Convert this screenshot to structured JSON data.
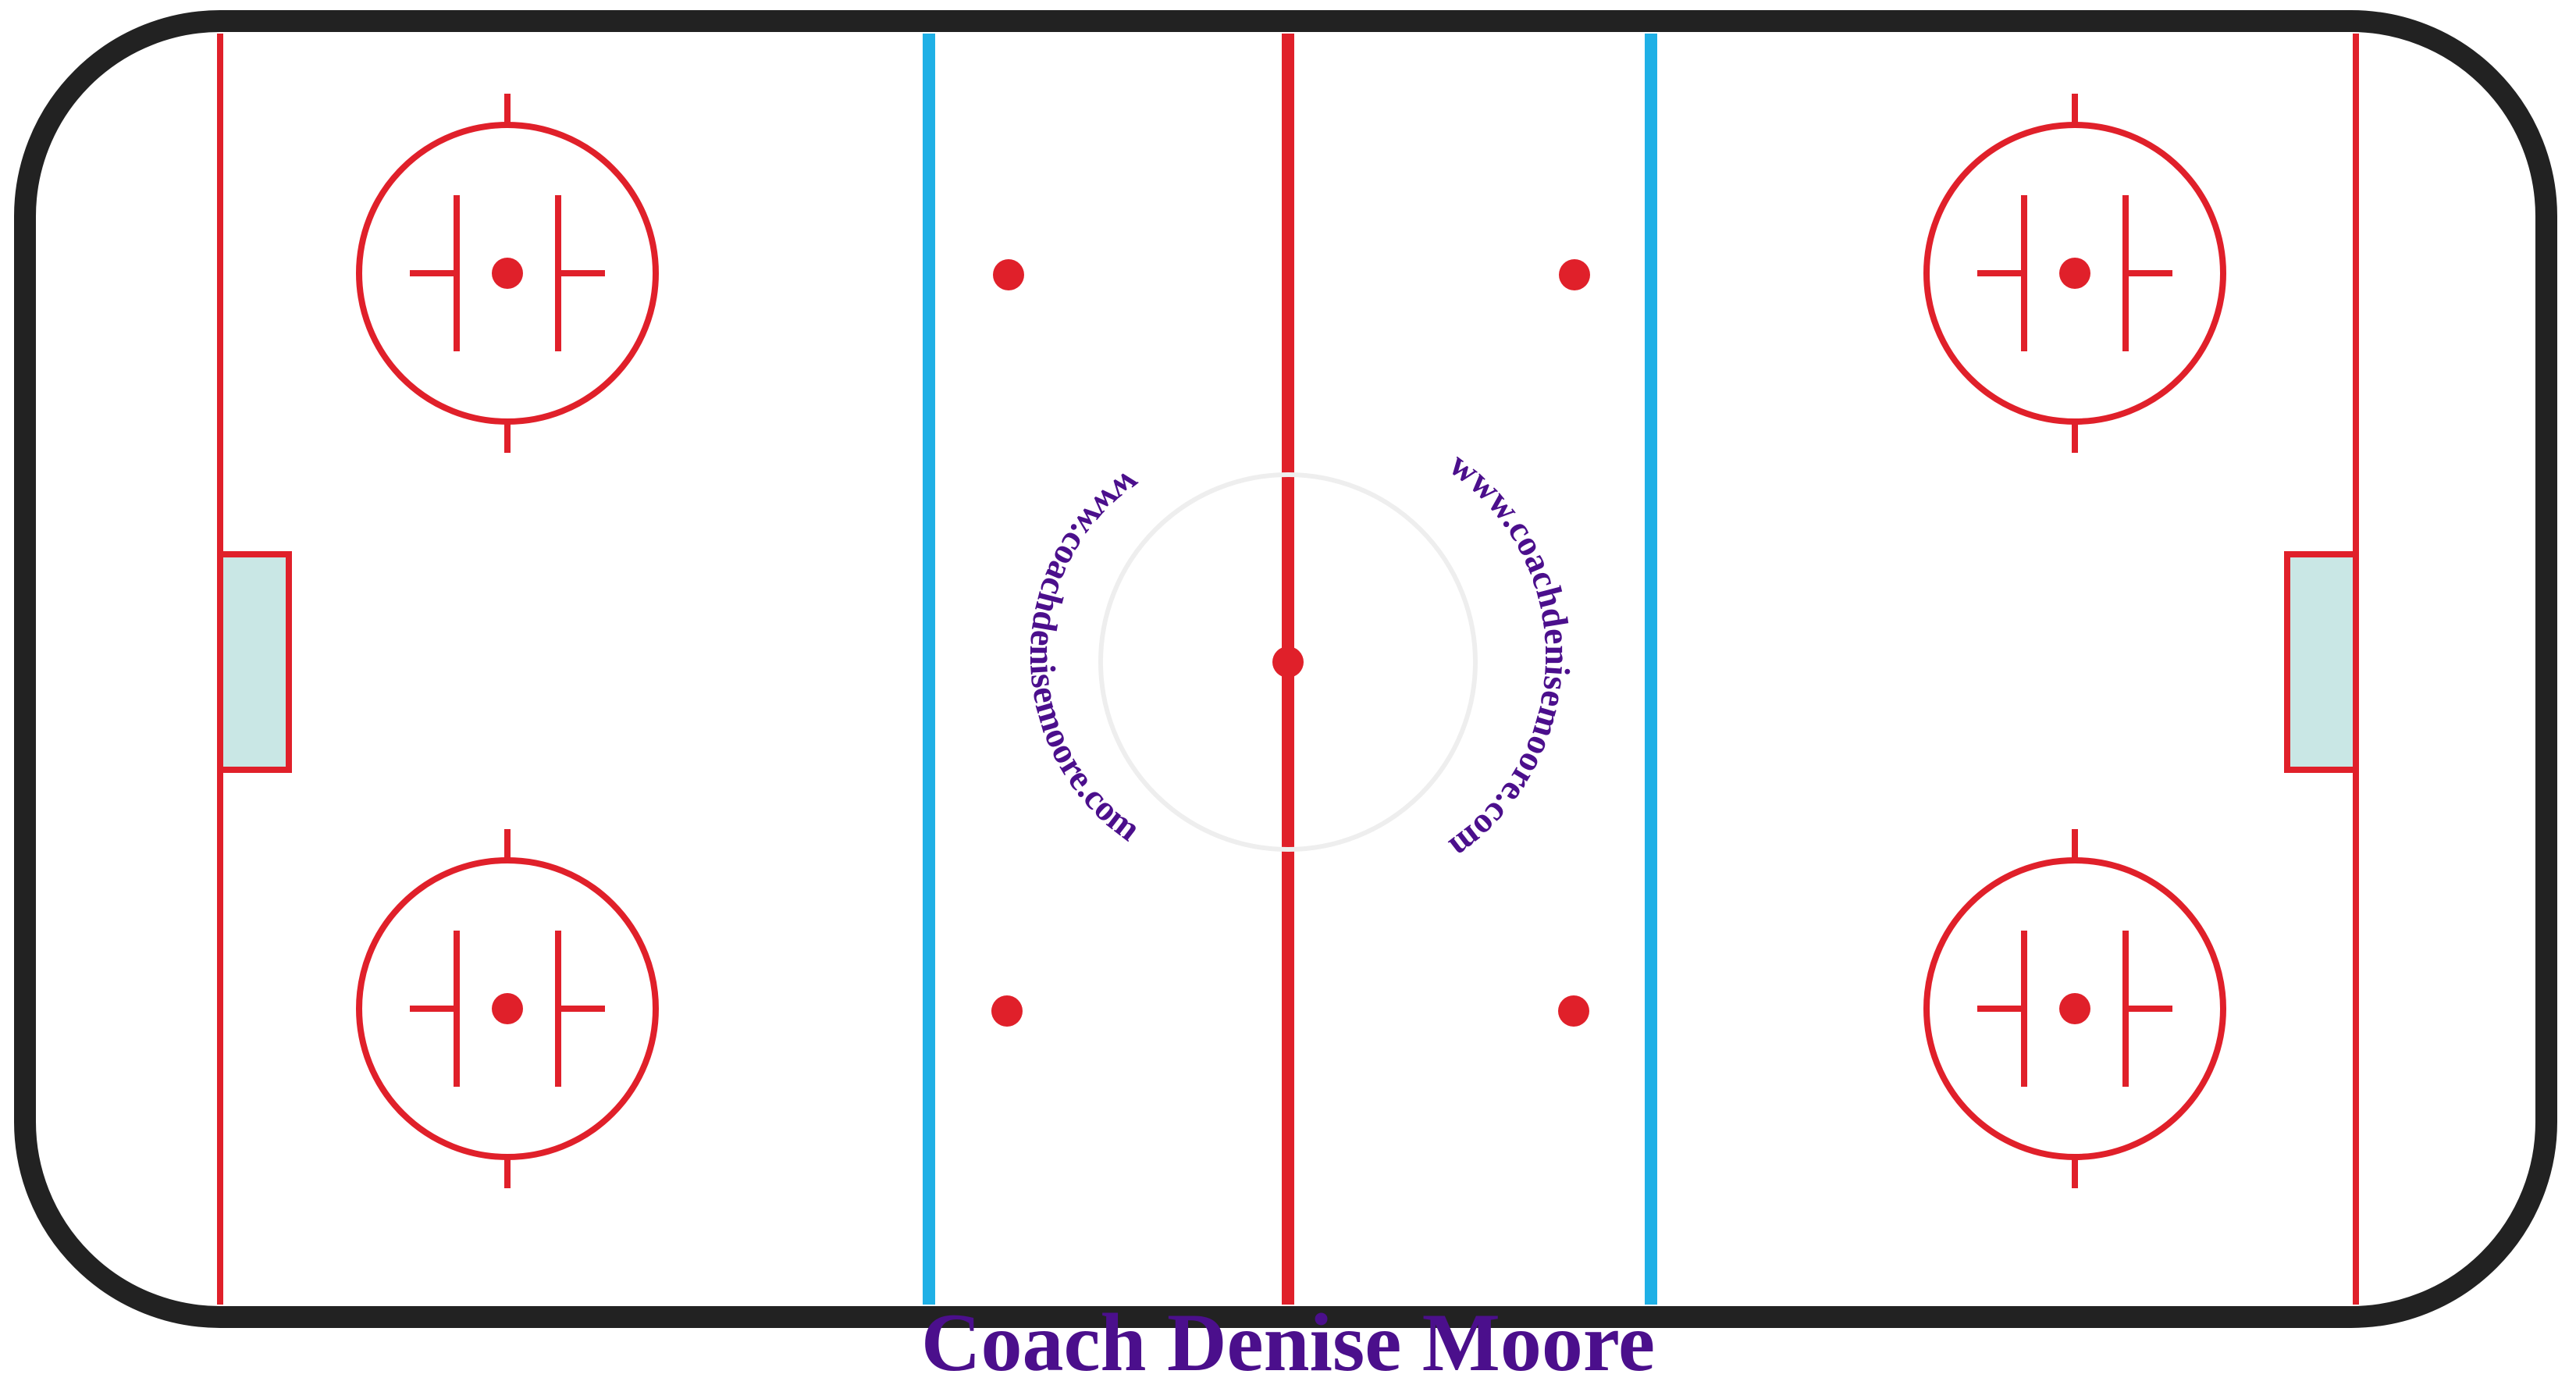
{
  "caption": {
    "text": "Coach Denise Moore",
    "color": "#4b0f8c"
  },
  "watermark": {
    "left_text": "www.coachdenisemoore.com",
    "right_text": "www.coachdenisemoore.com",
    "color": "#4b0f8c"
  },
  "colors": {
    "board": "#222222",
    "red_line": "#e0202a",
    "blue_line": "#1fb0e6",
    "crease_fill": "#c9e7e5",
    "ice": "#ffffff"
  }
}
